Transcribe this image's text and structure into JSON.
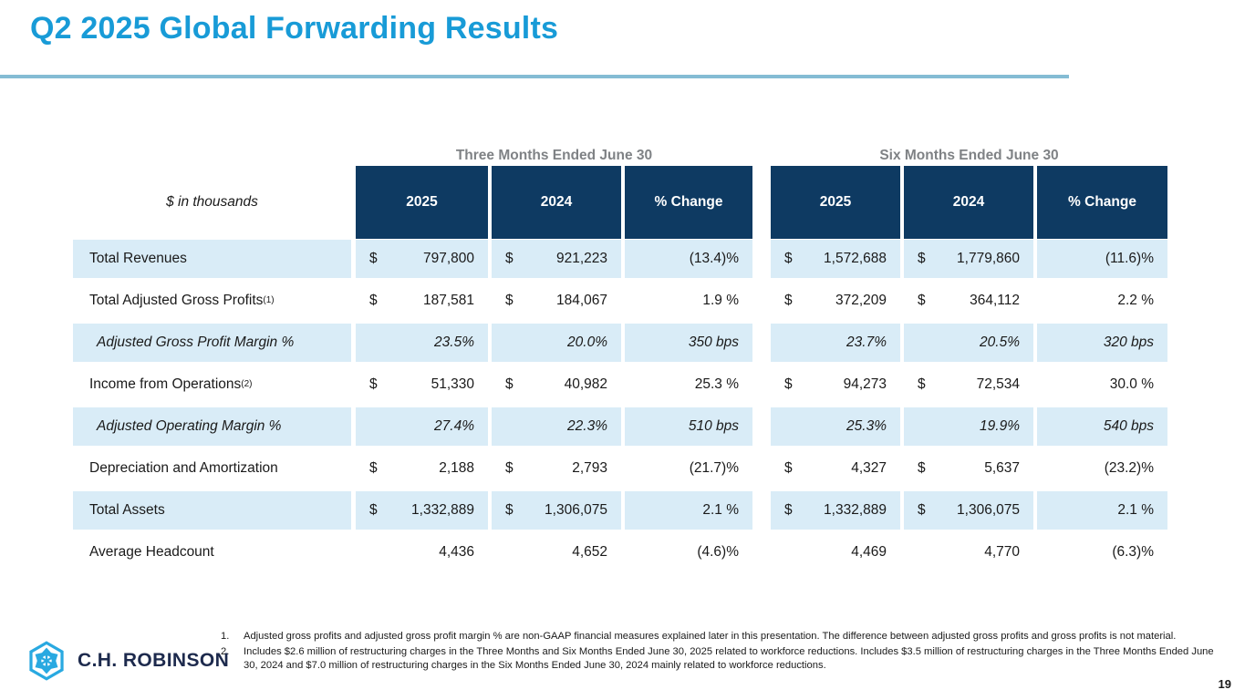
{
  "slide": {
    "title": "Q2 2025 Global Forwarding Results",
    "page_number": "19",
    "logo_text": "C.H. ROBINSON"
  },
  "colors": {
    "title_accent": "#189BD7",
    "title_underline": "#84BCD4",
    "header_navy": "#0E3A62",
    "row_shade_blue": "#D9ECF7",
    "group_title_gray": "#7F8285",
    "logo_cyan": "#29A9E1",
    "logo_navy": "#1D2A4D"
  },
  "table": {
    "units_label": "$ in thousands",
    "groups": [
      {
        "title": "Three Months Ended June 30",
        "columns": [
          "2025",
          "2024",
          "% Change"
        ]
      },
      {
        "title": "Six Months Ended June 30",
        "columns": [
          "2025",
          "2024",
          "% Change"
        ]
      }
    ],
    "rows": [
      {
        "label": "Total Revenues",
        "sup": "",
        "italic": false,
        "shaded": true,
        "cells": [
          {
            "d": "$",
            "v": "797,800"
          },
          {
            "d": "$",
            "v": "921,223"
          },
          {
            "d": "",
            "v": "(13.4)%"
          },
          {
            "d": "$",
            "v": "1,572,688"
          },
          {
            "d": "$",
            "v": "1,779,860"
          },
          {
            "d": "",
            "v": "(11.6)%"
          }
        ]
      },
      {
        "label": "Total Adjusted Gross Profits",
        "sup": "(1)",
        "italic": false,
        "shaded": false,
        "cells": [
          {
            "d": "$",
            "v": "187,581"
          },
          {
            "d": "$",
            "v": "184,067"
          },
          {
            "d": "",
            "v": "1.9 %"
          },
          {
            "d": "$",
            "v": "372,209"
          },
          {
            "d": "$",
            "v": "364,112"
          },
          {
            "d": "",
            "v": "2.2 %"
          }
        ]
      },
      {
        "label": "Adjusted Gross Profit Margin %",
        "sup": "",
        "italic": true,
        "shaded": true,
        "cells": [
          {
            "d": "",
            "v": "23.5%"
          },
          {
            "d": "",
            "v": "20.0%"
          },
          {
            "d": "",
            "v": "350 bps"
          },
          {
            "d": "",
            "v": "23.7%"
          },
          {
            "d": "",
            "v": "20.5%"
          },
          {
            "d": "",
            "v": "320 bps"
          }
        ]
      },
      {
        "label": "Income from Operations",
        "sup": "(2)",
        "italic": false,
        "shaded": false,
        "cells": [
          {
            "d": "$",
            "v": "51,330"
          },
          {
            "d": "$",
            "v": "40,982"
          },
          {
            "d": "",
            "v": "25.3 %"
          },
          {
            "d": "$",
            "v": "94,273"
          },
          {
            "d": "$",
            "v": "72,534"
          },
          {
            "d": "",
            "v": "30.0 %"
          }
        ]
      },
      {
        "label": "Adjusted Operating Margin %",
        "sup": "",
        "italic": true,
        "shaded": true,
        "cells": [
          {
            "d": "",
            "v": "27.4%"
          },
          {
            "d": "",
            "v": "22.3%"
          },
          {
            "d": "",
            "v": "510 bps"
          },
          {
            "d": "",
            "v": "25.3%"
          },
          {
            "d": "",
            "v": "19.9%"
          },
          {
            "d": "",
            "v": "540 bps"
          }
        ]
      },
      {
        "label": "Depreciation and Amortization",
        "sup": "",
        "italic": false,
        "shaded": false,
        "cells": [
          {
            "d": "$",
            "v": "2,188"
          },
          {
            "d": "$",
            "v": "2,793"
          },
          {
            "d": "",
            "v": "(21.7)%"
          },
          {
            "d": "$",
            "v": "4,327"
          },
          {
            "d": "$",
            "v": "5,637"
          },
          {
            "d": "",
            "v": "(23.2)%"
          }
        ]
      },
      {
        "label": "Total Assets",
        "sup": "",
        "italic": false,
        "shaded": true,
        "cells": [
          {
            "d": "$",
            "v": "1,332,889"
          },
          {
            "d": "$",
            "v": "1,306,075"
          },
          {
            "d": "",
            "v": "2.1 %"
          },
          {
            "d": "$",
            "v": "1,332,889"
          },
          {
            "d": "$",
            "v": "1,306,075"
          },
          {
            "d": "",
            "v": "2.1 %"
          }
        ]
      },
      {
        "label": "Average Headcount",
        "sup": "",
        "italic": false,
        "shaded": false,
        "cells": [
          {
            "d": "",
            "v": "4,436"
          },
          {
            "d": "",
            "v": "4,652"
          },
          {
            "d": "",
            "v": "(4.6)%"
          },
          {
            "d": "",
            "v": "4,469"
          },
          {
            "d": "",
            "v": "4,770"
          },
          {
            "d": "",
            "v": "(6.3)%"
          }
        ]
      }
    ]
  },
  "footnotes": [
    {
      "num": "1.",
      "text": "Adjusted gross profits and adjusted gross profit margin % are non-GAAP financial measures explained later in this presentation. The difference between adjusted gross profits and gross profits is not material."
    },
    {
      "num": "2.",
      "text": "Includes $2.6 million of restructuring charges in the Three Months and Six Months Ended June 30, 2025 related to workforce reductions. Includes $3.5 million of restructuring charges in the Three Months Ended June 30, 2024 and $7.0 million of restructuring charges in the Six Months Ended June 30, 2024 mainly related to workforce reductions."
    }
  ]
}
